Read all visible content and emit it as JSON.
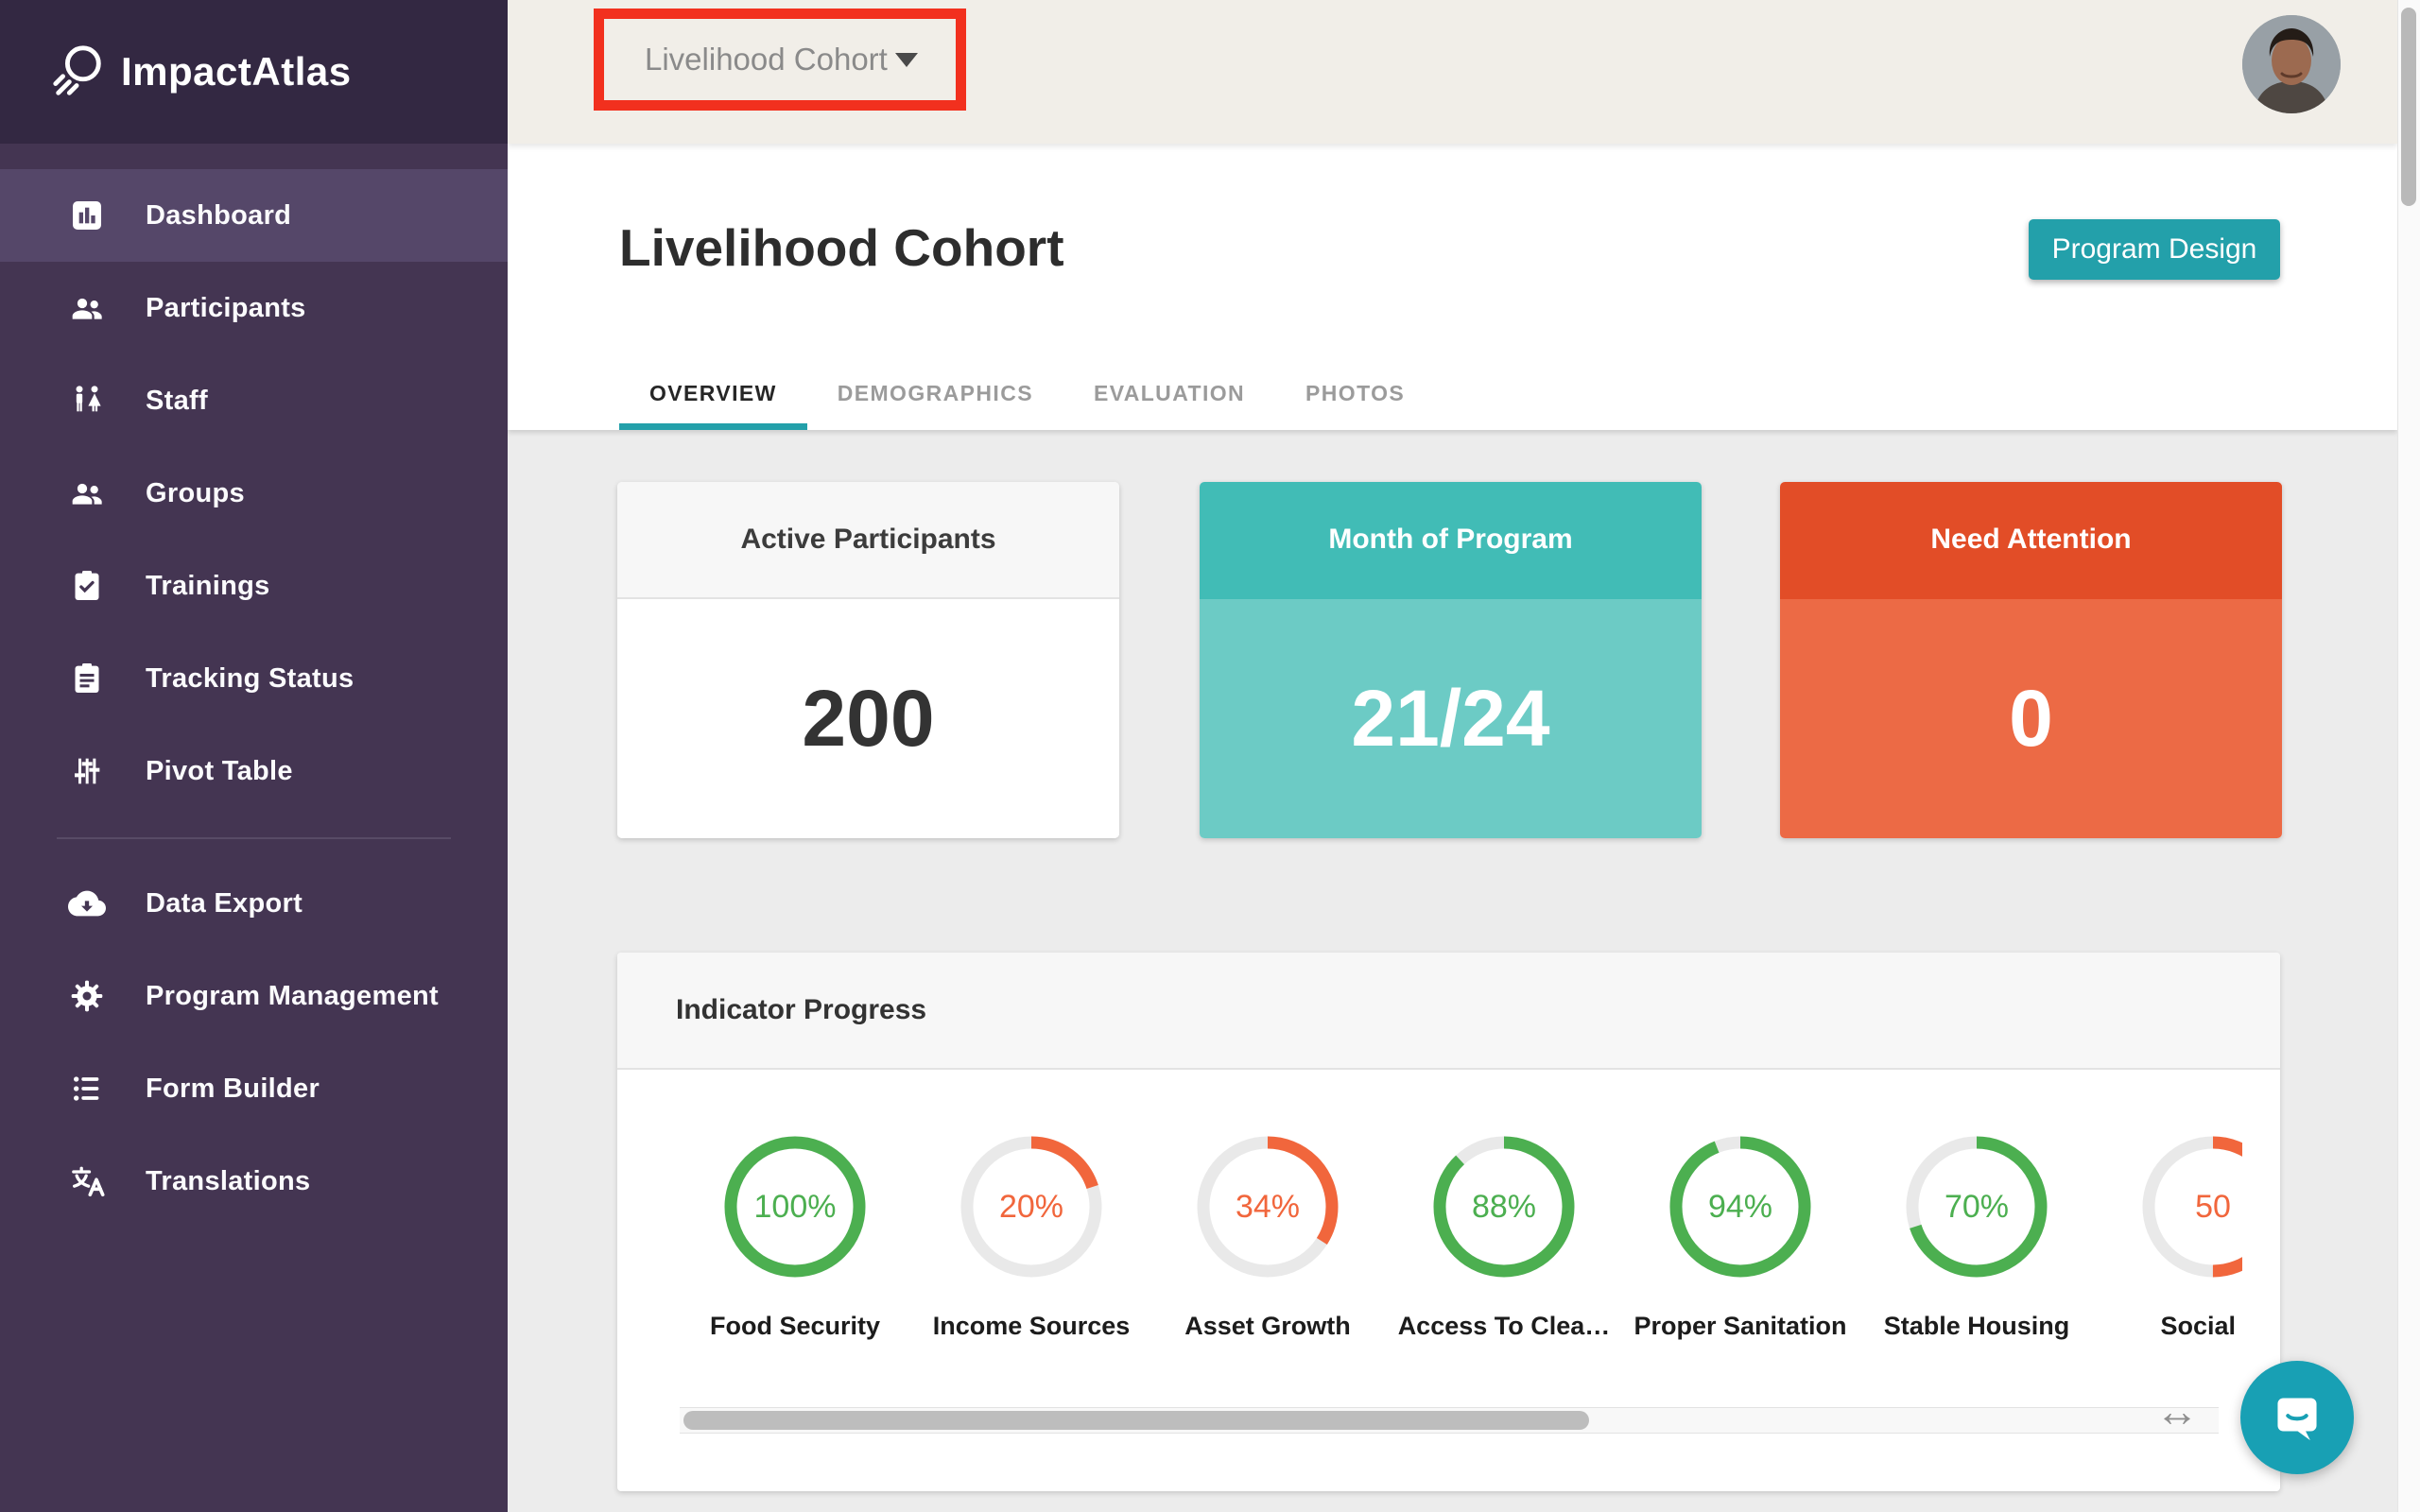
{
  "app": {
    "name": "ImpactAtlas"
  },
  "topbar": {
    "cohort_value": "Livelihood Cohort",
    "cohort_highlighted": true
  },
  "sidebar": {
    "primary": [
      {
        "label": "Dashboard",
        "icon": "bar-chart",
        "active": true
      },
      {
        "label": "Participants",
        "icon": "people",
        "active": false
      },
      {
        "label": "Staff",
        "icon": "wc",
        "active": false
      },
      {
        "label": "Groups",
        "icon": "people",
        "active": false
      },
      {
        "label": "Trainings",
        "icon": "clipboard-check",
        "active": false
      },
      {
        "label": "Tracking Status",
        "icon": "clipboard",
        "active": false
      },
      {
        "label": "Pivot Table",
        "icon": "sliders",
        "active": false
      }
    ],
    "secondary": [
      {
        "label": "Data Export",
        "icon": "cloud-download",
        "active": false
      },
      {
        "label": "Program Management",
        "icon": "gear",
        "active": false
      },
      {
        "label": "Form Builder",
        "icon": "list",
        "active": false
      },
      {
        "label": "Translations",
        "icon": "translate",
        "active": false
      }
    ]
  },
  "page": {
    "title": "Livelihood Cohort",
    "action_button": "Program Design",
    "tabs": [
      {
        "label": "OVERVIEW",
        "active": true
      },
      {
        "label": "DEMOGRAPHICS",
        "active": false
      },
      {
        "label": "EVALUATION",
        "active": false
      },
      {
        "label": "PHOTOS",
        "active": false
      }
    ],
    "stat_cards": [
      {
        "title": "Active Participants",
        "value": "200",
        "head_bg": "#f7f7f7",
        "head_fg": "#3c3c3c",
        "head_border": "#e3e3e3",
        "body_bg": "#ffffff",
        "body_fg": "#333333"
      },
      {
        "title": "Month of Program",
        "value": "21/24",
        "head_bg": "#41bcb6",
        "head_fg": "#ffffff",
        "head_border": "#41bcb6",
        "body_bg": "#6ccbc5",
        "body_fg": "#ffffff"
      },
      {
        "title": "Need Attention",
        "value": "0",
        "head_bg": "#e24d27",
        "head_fg": "#ffffff",
        "head_border": "#e24d27",
        "body_bg": "#ec6a45",
        "body_fg": "#ffffff"
      }
    ],
    "indicator_progress": {
      "title": "Indicator Progress",
      "items": [
        {
          "label": "Food Security",
          "value": 100,
          "display": "100%",
          "color": "green"
        },
        {
          "label": "Income Sources",
          "value": 20,
          "display": "20%",
          "color": "orange"
        },
        {
          "label": "Asset Growth",
          "value": 34,
          "display": "34%",
          "color": "orange"
        },
        {
          "label": "Access To Clea…",
          "value": 88,
          "display": "88%",
          "color": "green"
        },
        {
          "label": "Proper Sanitation",
          "value": 94,
          "display": "94%",
          "color": "green"
        },
        {
          "label": "Stable Housing",
          "value": 70,
          "display": "70%",
          "color": "green"
        },
        {
          "label": "Social In",
          "value": 50,
          "display": "50",
          "color": "orange",
          "clipped": true
        }
      ]
    }
  },
  "colors": {
    "accent_teal": "#23a0aa",
    "highlight_red": "#f2301e",
    "sidebar_bg": "#443552",
    "sidebar_active": "#554769",
    "topbar_bg": "#f1eee8",
    "ring_green": "#4caf50",
    "ring_orange": "#f1663c",
    "ring_track": "#e9e9e9",
    "intercom_teal": "#18a0b4"
  }
}
